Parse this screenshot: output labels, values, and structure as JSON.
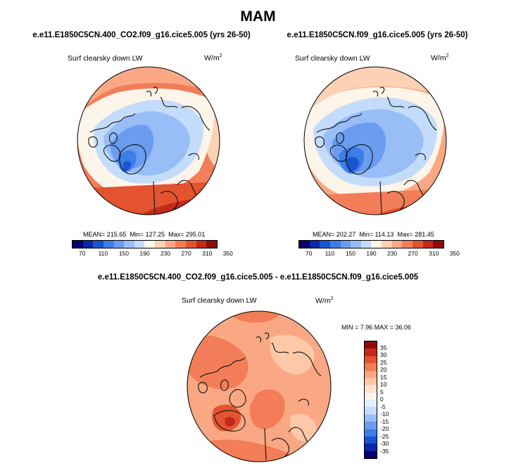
{
  "title": "MAM",
  "panels": [
    {
      "case_title": "e.e11.E1850C5CN.400_CO2.f09_g16.cice5.005 (yrs 26-50)",
      "variable": "Surf clearsky down LW",
      "units": "W/m",
      "units_exp": "2",
      "mean_text": "MEAN= 215.65",
      "min_text": "Min= 127.25",
      "max_text": "Max= 295.01"
    },
    {
      "case_title": "e.e11.E1850C5CN.f09_g16.cice5.005 (yrs 26-50)",
      "variable": "Surf clearsky down LW",
      "units": "W/m",
      "units_exp": "2",
      "mean_text": "MEAN= 202.27",
      "min_text": "Min= 114.13",
      "max_text": "Max= 281.45"
    }
  ],
  "abs_colorbar": {
    "colors": [
      "#08006e",
      "#0a28a8",
      "#1b54d2",
      "#3d7de8",
      "#6a9cf0",
      "#98bdf7",
      "#c3dcfb",
      "#fdf4ea",
      "#fcd2b5",
      "#f9a883",
      "#f27d58",
      "#e4532f",
      "#c6281a",
      "#8e0b05"
    ],
    "tick_labels": [
      "70",
      "110",
      "150",
      "190",
      "230",
      "270",
      "310",
      "350"
    ]
  },
  "diff": {
    "title": "e.e11.E1850C5CN.400_CO2.f09_g16.cice5.005 - e.e11.E1850C5CN.f09_g16.cice5.005",
    "variable": "Surf clearsky down LW",
    "units": "W/m",
    "units_exp": "2",
    "min_text": "MIN =   7.96 MAX =  36.06",
    "colorbar": {
      "colors": [
        "#8e0b05",
        "#c6281a",
        "#e4532f",
        "#f27d58",
        "#f9a883",
        "#fcc8a8",
        "#fde2cf",
        "#fdf4ea",
        "#e2eefc",
        "#c3dcfb",
        "#98bdf7",
        "#6a9cf0",
        "#3d7de8",
        "#1b54d2",
        "#0a28a8",
        "#08006e"
      ],
      "tick_labels": [
        "35",
        "30",
        "25",
        "20",
        "15",
        "10",
        "5",
        "0",
        "-5",
        "-10",
        "-15",
        "-20",
        "-25",
        "-30",
        "-35"
      ]
    }
  }
}
